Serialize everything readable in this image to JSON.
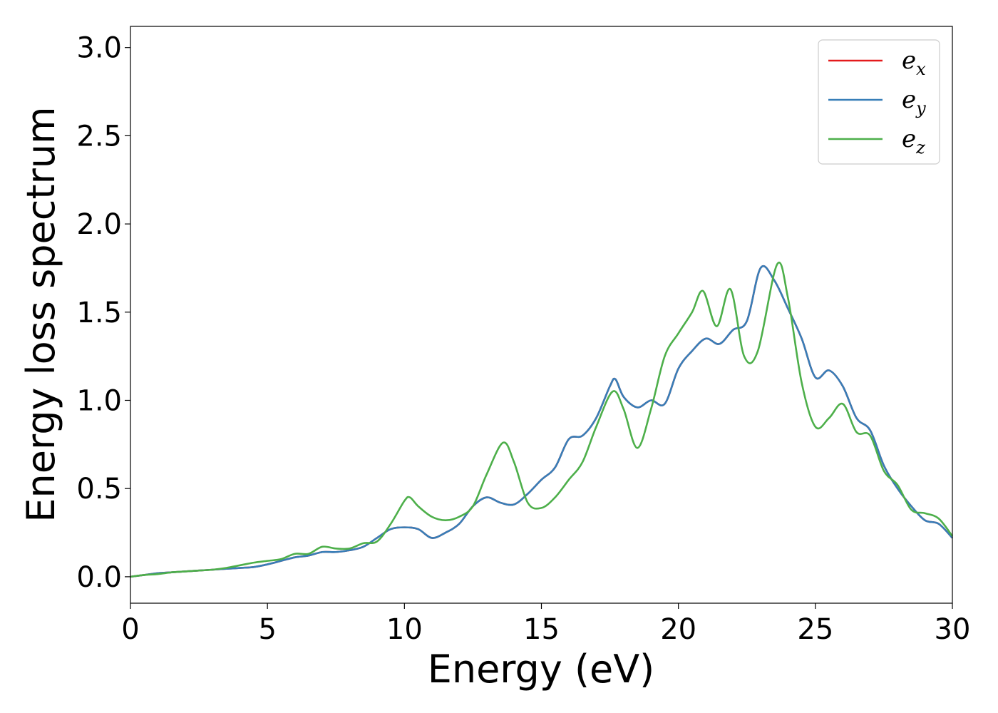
{
  "chart_data": {
    "type": "line",
    "title": "",
    "xlabel": "Energy (eV)",
    "ylabel": "Energy loss spectrum",
    "xlim": [
      0,
      30
    ],
    "ylim": [
      -0.15,
      3.12
    ],
    "xticks": [
      0,
      5,
      10,
      15,
      20,
      25,
      30
    ],
    "xtick_labels": [
      "0",
      "5",
      "10",
      "15",
      "20",
      "25",
      "30"
    ],
    "yticks": [
      0.0,
      0.5,
      1.0,
      1.5,
      2.0,
      2.5,
      3.0
    ],
    "ytick_labels": [
      "0.0",
      "0.5",
      "1.0",
      "1.5",
      "2.0",
      "2.5",
      "3.0"
    ],
    "grid": false,
    "legend_position": "top-right",
    "series": [
      {
        "name": "e_x",
        "legend_base": "e",
        "legend_sub": "x",
        "color": "#e41a1c",
        "x": [
          0,
          0.5,
          1,
          1.5,
          2,
          2.5,
          3,
          3.5,
          4,
          4.5,
          5,
          5.5,
          6,
          6.5,
          7,
          7.5,
          8,
          8.5,
          9,
          9.5,
          10,
          10.5,
          11,
          11.5,
          12,
          12.5,
          13,
          13.5,
          14,
          14.5,
          15,
          15.5,
          16,
          16.5,
          17,
          17.5,
          17.7,
          18,
          18.5,
          19,
          19.5,
          20,
          20.5,
          21,
          21.5,
          22,
          22.5,
          23,
          23.5,
          24,
          24.5,
          25,
          25.5,
          26,
          26.5,
          27,
          27.5,
          28,
          28.5,
          29,
          29.5,
          30
        ],
        "y": [
          0.0,
          0.01,
          0.02,
          0.025,
          0.03,
          0.035,
          0.04,
          0.045,
          0.05,
          0.055,
          0.07,
          0.09,
          0.11,
          0.12,
          0.14,
          0.14,
          0.15,
          0.17,
          0.22,
          0.27,
          0.28,
          0.27,
          0.22,
          0.25,
          0.3,
          0.4,
          0.45,
          0.42,
          0.41,
          0.47,
          0.55,
          0.62,
          0.78,
          0.8,
          0.9,
          1.08,
          1.12,
          1.02,
          0.96,
          1.0,
          0.98,
          1.18,
          1.28,
          1.35,
          1.32,
          1.4,
          1.45,
          1.75,
          1.68,
          1.52,
          1.35,
          1.13,
          1.17,
          1.08,
          0.9,
          0.83,
          0.63,
          0.5,
          0.4,
          0.32,
          0.3,
          0.22
        ]
      },
      {
        "name": "e_y",
        "legend_base": "e",
        "legend_sub": "y",
        "color": "#377eb8",
        "x": [
          0,
          0.5,
          1,
          1.5,
          2,
          2.5,
          3,
          3.5,
          4,
          4.5,
          5,
          5.5,
          6,
          6.5,
          7,
          7.5,
          8,
          8.5,
          9,
          9.5,
          10,
          10.5,
          11,
          11.5,
          12,
          12.5,
          13,
          13.5,
          14,
          14.5,
          15,
          15.5,
          16,
          16.5,
          17,
          17.5,
          17.7,
          18,
          18.5,
          19,
          19.5,
          20,
          20.5,
          21,
          21.5,
          22,
          22.5,
          23,
          23.5,
          24,
          24.5,
          25,
          25.5,
          26,
          26.5,
          27,
          27.5,
          28,
          28.5,
          29,
          29.5,
          30
        ],
        "y": [
          0.0,
          0.01,
          0.02,
          0.025,
          0.03,
          0.035,
          0.04,
          0.045,
          0.05,
          0.055,
          0.07,
          0.09,
          0.11,
          0.12,
          0.14,
          0.14,
          0.15,
          0.17,
          0.22,
          0.27,
          0.28,
          0.27,
          0.22,
          0.25,
          0.3,
          0.4,
          0.45,
          0.42,
          0.41,
          0.47,
          0.55,
          0.62,
          0.78,
          0.8,
          0.9,
          1.08,
          1.12,
          1.02,
          0.96,
          1.0,
          0.98,
          1.18,
          1.28,
          1.35,
          1.32,
          1.4,
          1.45,
          1.75,
          1.68,
          1.52,
          1.35,
          1.13,
          1.17,
          1.08,
          0.9,
          0.83,
          0.63,
          0.5,
          0.4,
          0.32,
          0.3,
          0.22
        ]
      },
      {
        "name": "e_z",
        "legend_base": "e",
        "legend_sub": "z",
        "color": "#4daf4a",
        "x": [
          0,
          0.5,
          1,
          1.5,
          2,
          2.5,
          3,
          3.5,
          4,
          4.5,
          5,
          5.5,
          6,
          6.5,
          7,
          7.5,
          8,
          8.5,
          9,
          9.5,
          10,
          10.2,
          10.5,
          11,
          11.5,
          12,
          12.5,
          13,
          13.6,
          14,
          14.5,
          15,
          15.5,
          16,
          16.5,
          17,
          17.6,
          18,
          18.5,
          19,
          19.5,
          20,
          20.5,
          20.9,
          21.4,
          21.9,
          22.4,
          22.9,
          23.6,
          24,
          24.5,
          25,
          25.5,
          26,
          26.5,
          27,
          27.5,
          28,
          28.5,
          29,
          29.5,
          30
        ],
        "y": [
          0.0,
          0.01,
          0.015,
          0.025,
          0.03,
          0.035,
          0.04,
          0.05,
          0.065,
          0.08,
          0.09,
          0.1,
          0.13,
          0.13,
          0.17,
          0.16,
          0.16,
          0.19,
          0.2,
          0.3,
          0.43,
          0.45,
          0.4,
          0.34,
          0.32,
          0.34,
          0.4,
          0.58,
          0.76,
          0.65,
          0.42,
          0.39,
          0.45,
          0.55,
          0.65,
          0.85,
          1.05,
          0.95,
          0.73,
          0.95,
          1.25,
          1.38,
          1.5,
          1.62,
          1.42,
          1.63,
          1.25,
          1.28,
          1.77,
          1.58,
          1.1,
          0.85,
          0.9,
          0.98,
          0.82,
          0.8,
          0.6,
          0.52,
          0.38,
          0.36,
          0.33,
          0.23
        ]
      }
    ]
  }
}
